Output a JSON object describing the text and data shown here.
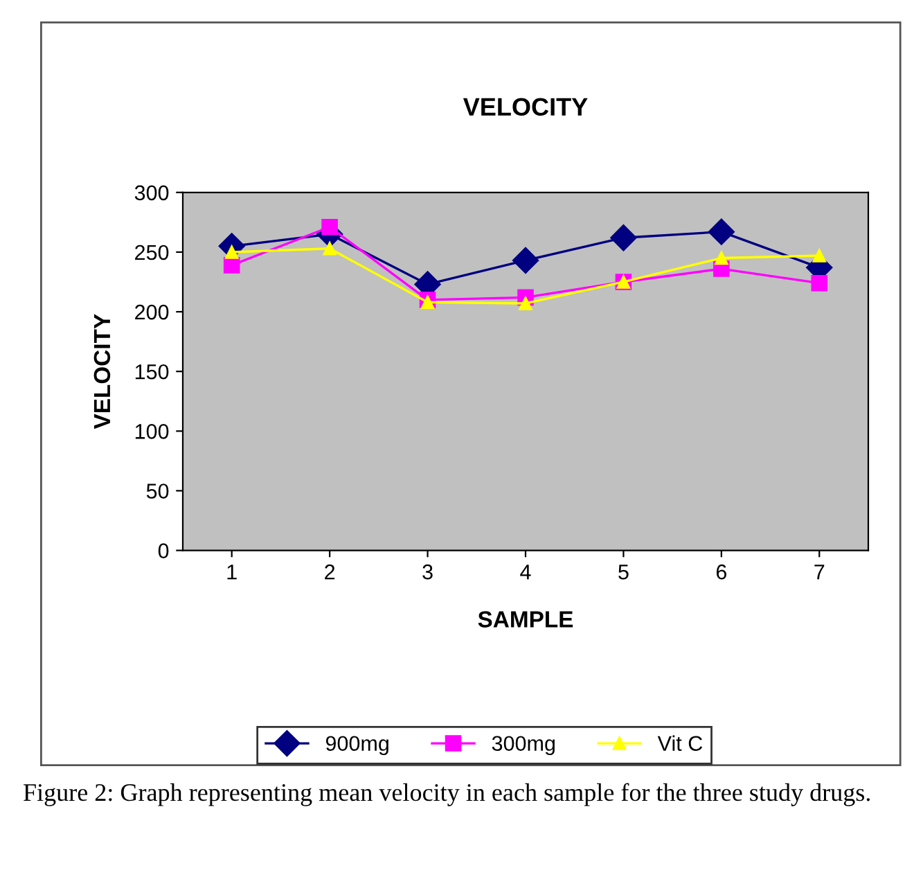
{
  "chart_data": {
    "type": "line",
    "title": "VELOCITY",
    "xlabel": "SAMPLE",
    "ylabel": "VELOCITY",
    "categories": [
      "1",
      "2",
      "3",
      "4",
      "5",
      "6",
      "7"
    ],
    "series": [
      {
        "name": "900mg",
        "color": "#000080",
        "marker": "diamond",
        "values": [
          255,
          265,
          223,
          243,
          262,
          267,
          237
        ]
      },
      {
        "name": "300mg",
        "color": "#ff00ff",
        "marker": "square",
        "values": [
          239,
          271,
          210,
          212,
          225,
          236,
          224
        ]
      },
      {
        "name": "Vit C",
        "color": "#ffff00",
        "marker": "triangle",
        "values": [
          250,
          253,
          208,
          207,
          225,
          245,
          247
        ]
      }
    ],
    "ylim": [
      0,
      300
    ],
    "yticks": [
      0,
      50,
      100,
      150,
      200,
      250,
      300
    ],
    "grid": false,
    "legend": "bottom",
    "line_style": "solid",
    "annotations": [
      "Figure 2: Graph representing mean velocity in each sample for the three study drugs."
    ]
  }
}
